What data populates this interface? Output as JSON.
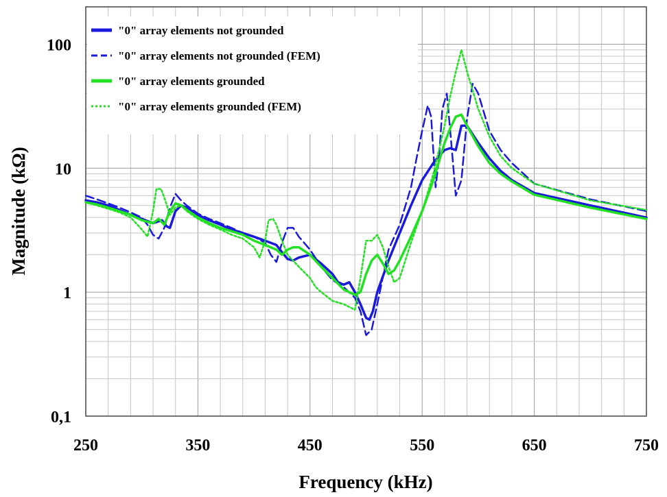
{
  "chart_data": {
    "type": "line",
    "title": "",
    "xlabel": "Frequency (kHz)",
    "ylabel": "Magnitude (kΩ)",
    "xlim": [
      250,
      750
    ],
    "ylim": [
      0.1,
      200
    ],
    "yscale": "log",
    "grid": true,
    "legend_position": "top-left",
    "x_ticks": [
      250,
      350,
      450,
      550,
      650,
      750
    ],
    "x_tick_labels": [
      "250",
      "350",
      "450",
      "550",
      "650",
      "750"
    ],
    "y_ticks": [
      0.1,
      1,
      10,
      100
    ],
    "y_tick_labels": [
      "0,1",
      "1",
      "10",
      "100"
    ],
    "series": [
      {
        "name": "\"0\" array elements not grounded",
        "color": "#1a1adc",
        "style": "solid",
        "x": [
          250,
          260,
          270,
          280,
          290,
          300,
          310,
          318,
          322,
          325,
          330,
          335,
          340,
          350,
          360,
          370,
          380,
          390,
          400,
          410,
          420,
          425,
          430,
          435,
          440,
          450,
          460,
          470,
          475,
          480,
          485,
          490,
          495,
          500,
          503,
          506,
          510,
          520,
          530,
          540,
          550,
          560,
          565,
          570,
          575,
          580,
          585,
          590,
          600,
          610,
          620,
          630,
          650,
          700,
          750
        ],
        "y": [
          5.5,
          5.3,
          5.0,
          4.6,
          4.2,
          3.9,
          3.6,
          3.8,
          3.4,
          3.3,
          4.5,
          5.0,
          4.8,
          4.2,
          3.8,
          3.5,
          3.2,
          3.0,
          2.8,
          2.6,
          2.4,
          2.1,
          1.85,
          1.8,
          1.9,
          2.0,
          1.7,
          1.4,
          1.2,
          1.15,
          1.2,
          1.0,
          0.8,
          0.62,
          0.6,
          0.7,
          1.0,
          1.8,
          3.0,
          5.0,
          8.0,
          11.0,
          12.5,
          14.0,
          14.5,
          14.0,
          22.0,
          22.0,
          16.0,
          12.0,
          9.5,
          8.0,
          6.3,
          5.0,
          4.0
        ]
      },
      {
        "name": "\"0\" array elements not grounded (FEM)",
        "color": "#1a1adc",
        "style": "dashed",
        "x": [
          250,
          260,
          270,
          280,
          290,
          300,
          305,
          310,
          315,
          320,
          325,
          330,
          335,
          340,
          350,
          360,
          370,
          380,
          390,
          400,
          410,
          415,
          420,
          425,
          430,
          435,
          440,
          450,
          460,
          470,
          480,
          490,
          495,
          500,
          505,
          510,
          520,
          530,
          540,
          545,
          550,
          555,
          558,
          562,
          565,
          568,
          572,
          575,
          580,
          585,
          590,
          595,
          600,
          610,
          620,
          630,
          650,
          700,
          750
        ],
        "y": [
          6.0,
          5.6,
          5.2,
          4.8,
          4.4,
          4.0,
          3.5,
          2.9,
          2.7,
          3.3,
          4.8,
          6.2,
          5.5,
          5.0,
          4.3,
          3.9,
          3.6,
          3.3,
          3.0,
          2.8,
          2.5,
          2.0,
          1.75,
          2.5,
          3.3,
          3.3,
          2.8,
          2.2,
          1.6,
          1.25,
          1.1,
          0.9,
          0.7,
          0.45,
          0.5,
          0.8,
          2.2,
          3.5,
          7.0,
          12.0,
          20.0,
          32.0,
          26.0,
          7.0,
          12.0,
          30.0,
          40.0,
          20.0,
          6.0,
          8.0,
          25.0,
          48.0,
          40.0,
          20.0,
          14.0,
          11.0,
          7.5,
          5.6,
          4.5
        ]
      },
      {
        "name": "\"0\" array elements grounded",
        "color": "#22e022",
        "style": "solid",
        "x": [
          250,
          260,
          270,
          280,
          290,
          300,
          305,
          310,
          315,
          320,
          325,
          330,
          335,
          340,
          350,
          360,
          370,
          380,
          390,
          400,
          410,
          420,
          425,
          430,
          435,
          440,
          450,
          460,
          470,
          480,
          490,
          495,
          500,
          505,
          510,
          515,
          520,
          525,
          530,
          540,
          550,
          560,
          570,
          575,
          580,
          585,
          590,
          600,
          610,
          620,
          630,
          650,
          700,
          750
        ],
        "y": [
          5.3,
          5.1,
          4.8,
          4.5,
          4.2,
          3.8,
          3.7,
          3.6,
          3.9,
          3.5,
          4.5,
          5.2,
          5.0,
          4.6,
          4.0,
          3.6,
          3.3,
          3.1,
          2.9,
          2.6,
          2.4,
          2.2,
          2.0,
          2.2,
          2.3,
          2.3,
          2.0,
          1.6,
          1.3,
          1.05,
          0.95,
          1.0,
          1.4,
          1.8,
          2.0,
          1.7,
          1.4,
          1.5,
          1.8,
          2.8,
          4.5,
          8.0,
          16.0,
          21.0,
          26.0,
          27.0,
          22.0,
          15.0,
          11.0,
          9.0,
          7.8,
          6.1,
          4.8,
          3.9
        ]
      },
      {
        "name": "\"0\" array elements grounded (FEM)",
        "color": "#22e022",
        "style": "dotted",
        "x": [
          250,
          260,
          270,
          280,
          290,
          300,
          305,
          310,
          313,
          317,
          320,
          325,
          330,
          335,
          340,
          350,
          360,
          370,
          380,
          390,
          400,
          405,
          410,
          413,
          417,
          420,
          425,
          430,
          440,
          450,
          455,
          460,
          470,
          480,
          490,
          495,
          500,
          505,
          510,
          515,
          520,
          525,
          530,
          540,
          550,
          560,
          565,
          570,
          575,
          580,
          585,
          590,
          600,
          610,
          620,
          630,
          650,
          700,
          750
        ],
        "y": [
          5.3,
          5.0,
          4.7,
          4.4,
          4.0,
          3.2,
          2.8,
          4.5,
          6.8,
          6.8,
          5.8,
          4.2,
          4.8,
          5.0,
          4.5,
          3.9,
          3.5,
          3.2,
          2.9,
          2.7,
          2.3,
          1.9,
          2.6,
          3.8,
          3.9,
          3.5,
          2.6,
          2.0,
          1.6,
          1.3,
          1.1,
          1.0,
          0.85,
          0.8,
          0.72,
          1.3,
          2.6,
          2.6,
          2.9,
          2.3,
          1.6,
          1.2,
          1.3,
          2.5,
          4.5,
          9.0,
          14.0,
          22.0,
          38.0,
          60.0,
          90.0,
          60.0,
          30.0,
          18.0,
          12.5,
          10.0,
          7.5,
          5.5,
          4.6
        ]
      }
    ]
  }
}
